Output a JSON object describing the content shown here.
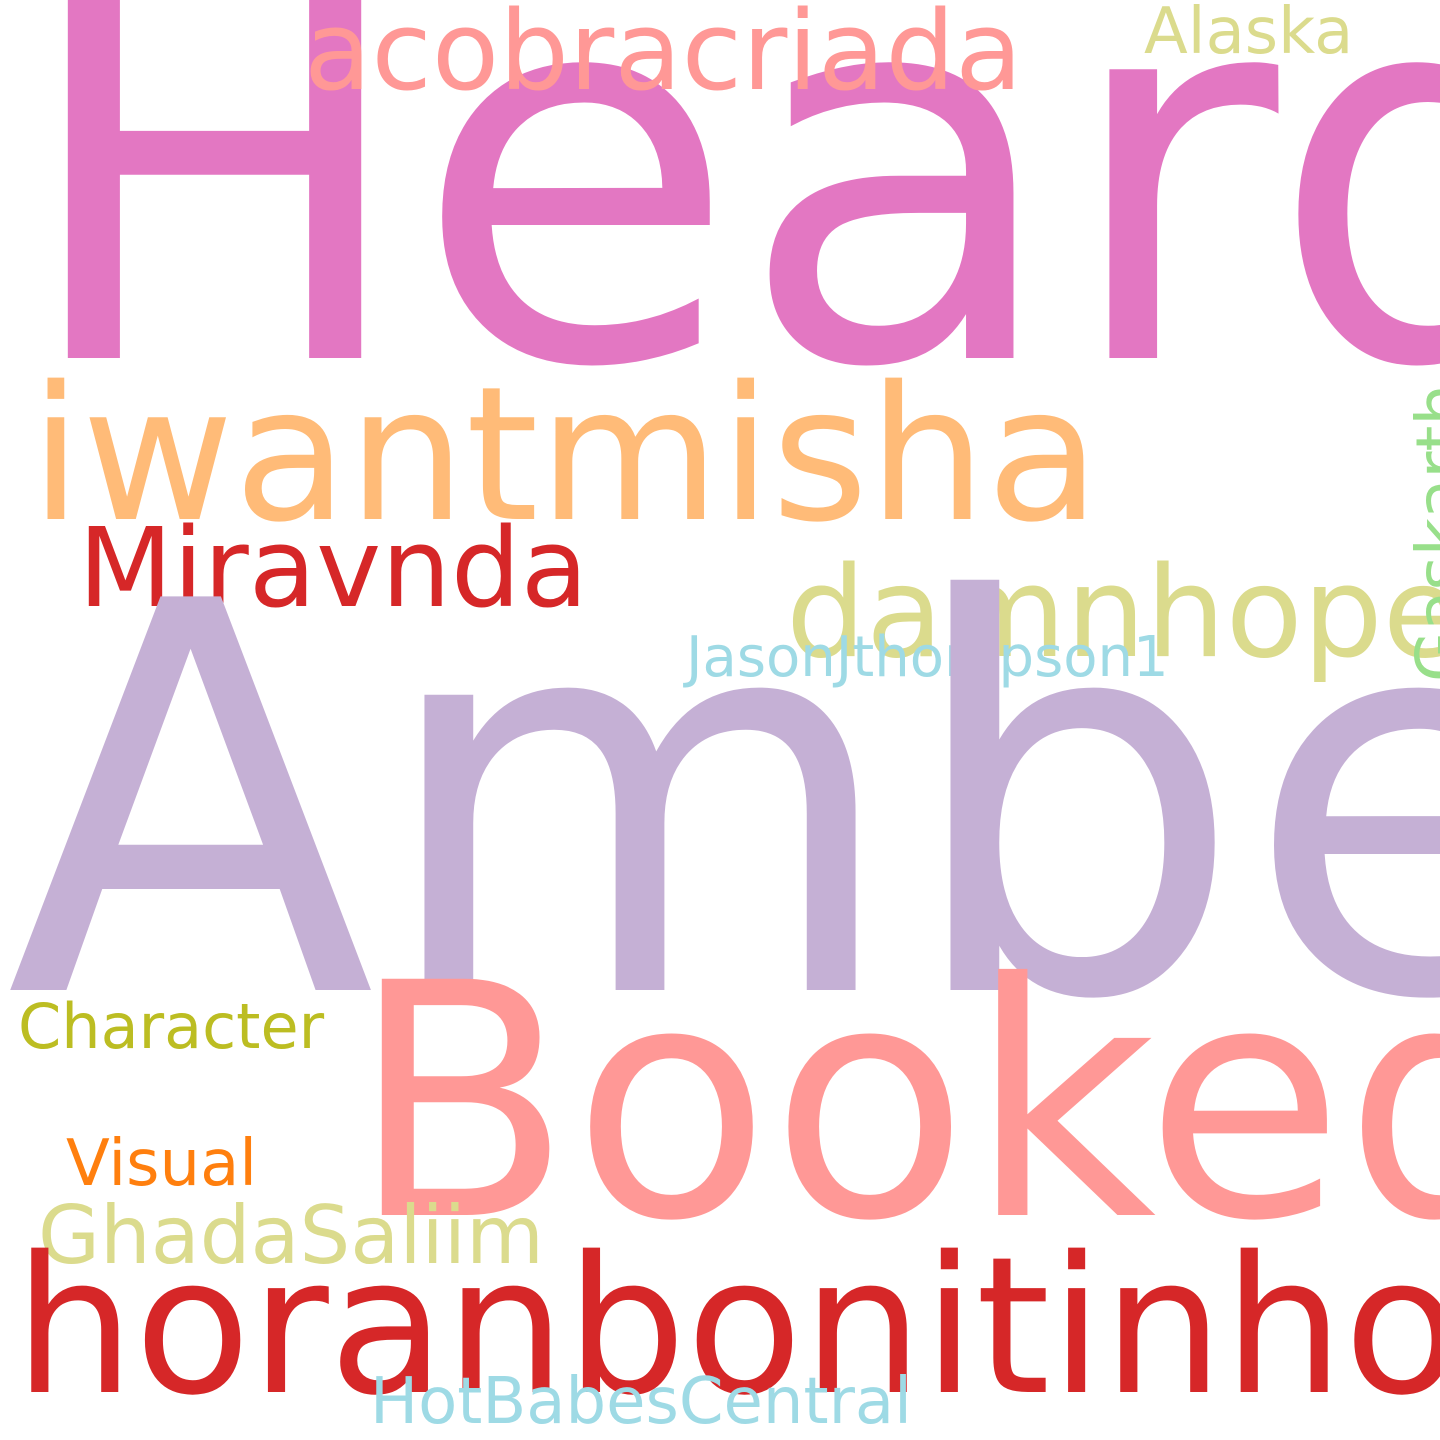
{
  "words": {
    "heard": {
      "text": "Heard",
      "color": "#e377c2"
    },
    "acobracriada": {
      "text": "acobracriada",
      "color": "#ff9896"
    },
    "alaska": {
      "text": "Alaska",
      "color": "#dbdb8d"
    },
    "iwantmisha": {
      "text": "iwantmisha",
      "color": "#ffbb78"
    },
    "miravnda": {
      "text": "Miravnda",
      "color": "#d62728"
    },
    "damnhope": {
      "text": "damnhope",
      "color": "#dbdb8d"
    },
    "jasonjthompson1": {
      "text": "JasonJthompson1",
      "color": "#9edae5"
    },
    "gaskarth": {
      "text": "Gaskarth",
      "color": "#98df8a"
    },
    "amber": {
      "text": "Amber",
      "color": "#c5b0d5"
    },
    "booked": {
      "text": "Booked",
      "color": "#ff9896"
    },
    "character": {
      "text": "Character",
      "color": "#bcbd22"
    },
    "visual": {
      "text": "Visual",
      "color": "#ff7f0e"
    },
    "ghadasaliim": {
      "text": "GhadaSaliim",
      "color": "#dbdb8d"
    },
    "horanbonitinho": {
      "text": "horanbonitinho",
      "color": "#d62728"
    },
    "hotbabescentral": {
      "text": "HotBabesCentral",
      "color": "#9edae5"
    }
  }
}
